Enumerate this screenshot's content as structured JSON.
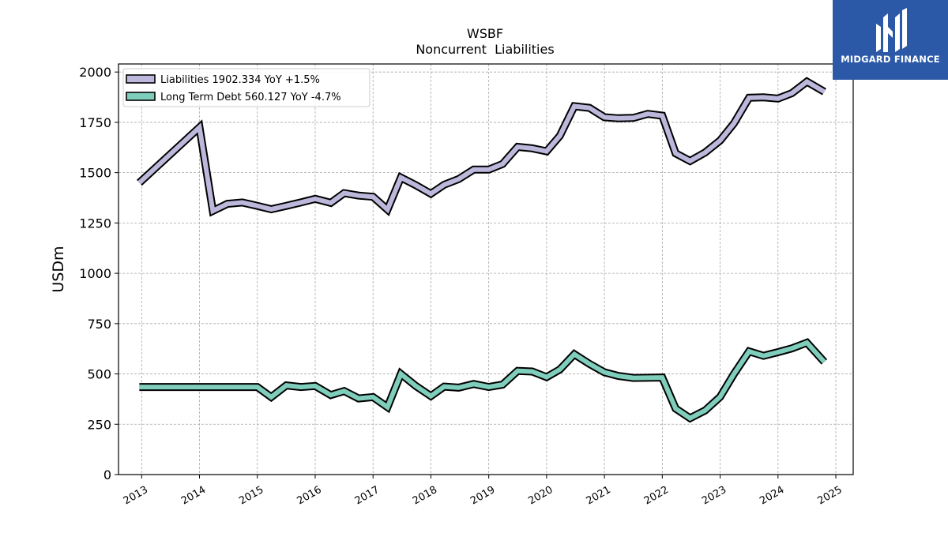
{
  "chart_data": {
    "type": "line",
    "title": "WSBF",
    "subtitle": "Noncurrent  Liabilities",
    "ylabel": "USDm",
    "xlabel": "",
    "ylim": [
      0,
      2040
    ],
    "xlim": [
      2012.6,
      2025.3
    ],
    "y_ticks": [
      0,
      250,
      500,
      750,
      1000,
      1250,
      1500,
      1750,
      2000
    ],
    "x_ticks": [
      2013,
      2014,
      2015,
      2016,
      2017,
      2018,
      2019,
      2020,
      2021,
      2022,
      2023,
      2024,
      2025
    ],
    "grid": true,
    "legend_position": "top-left",
    "series": [
      {
        "name": "Liabilities",
        "legend_label": "Liabilities  1902.334 YoY +1.5%",
        "color": "#bcb8dc",
        "x": [
          2012.96,
          2014.0,
          2014.23,
          2014.48,
          2014.74,
          2015.0,
          2015.24,
          2015.5,
          2015.75,
          2016.0,
          2016.27,
          2016.5,
          2016.75,
          2017.0,
          2017.25,
          2017.48,
          2017.74,
          2018.0,
          2018.23,
          2018.48,
          2018.74,
          2019.0,
          2019.24,
          2019.5,
          2019.75,
          2020.0,
          2020.23,
          2020.48,
          2020.74,
          2021.0,
          2021.24,
          2021.5,
          2021.75,
          2022.0,
          2022.23,
          2022.48,
          2022.74,
          2023.0,
          2023.24,
          2023.5,
          2023.75,
          2024.0,
          2024.24,
          2024.5,
          2024.8
        ],
        "values": [
          1450,
          1725,
          1310,
          1345,
          1352,
          1335,
          1318,
          1335,
          1352,
          1370,
          1350,
          1398,
          1386,
          1380,
          1316,
          1476,
          1438,
          1395,
          1440,
          1468,
          1515,
          1515,
          1543,
          1628,
          1621,
          1606,
          1683,
          1830,
          1822,
          1775,
          1770,
          1772,
          1792,
          1783,
          1596,
          1558,
          1600,
          1660,
          1745,
          1872,
          1874,
          1868,
          1895,
          1952,
          1902
        ]
      },
      {
        "name": "Long Term Debt",
        "legend_label": "Long Term Debt  560.127 YoY -4.7%",
        "color": "#7fcdbb",
        "x": [
          2012.96,
          2014.0,
          2014.48,
          2015.0,
          2015.24,
          2015.5,
          2015.75,
          2016.0,
          2016.27,
          2016.5,
          2016.75,
          2017.0,
          2017.25,
          2017.48,
          2017.74,
          2018.0,
          2018.23,
          2018.48,
          2018.74,
          2019.0,
          2019.24,
          2019.5,
          2019.75,
          2020.0,
          2020.23,
          2020.48,
          2020.74,
          2021.0,
          2021.24,
          2021.5,
          2021.75,
          2022.0,
          2022.23,
          2022.48,
          2022.74,
          2023.0,
          2023.24,
          2023.5,
          2023.75,
          2024.0,
          2024.24,
          2024.5,
          2024.8
        ],
        "values": [
          435,
          435,
          435,
          435,
          385,
          443,
          435,
          440,
          395,
          415,
          378,
          385,
          335,
          500,
          440,
          390,
          437,
          432,
          450,
          435,
          447,
          515,
          512,
          484,
          522,
          598,
          550,
          508,
          490,
          480,
          481,
          482,
          328,
          280,
          318,
          386,
          500,
          612,
          590,
          608,
          627,
          655,
          560
        ]
      }
    ]
  },
  "logo": {
    "text": "MIDGARD FINANCE",
    "background": "#2b59a7"
  }
}
